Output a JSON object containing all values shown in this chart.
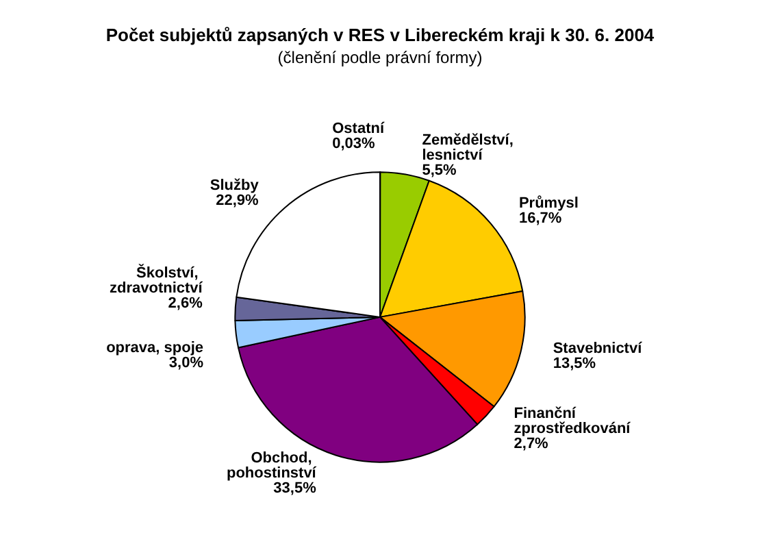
{
  "chart_data": {
    "type": "pie",
    "title": "Počet subjektů zapsaných v RES v Libereckém kraji k 30. 6. 2004",
    "subtitle": "(členění podle právní formy)",
    "categories": [
      "Ostatní",
      "Zemědělství, lesnictví",
      "Průmysl",
      "Stavebnictví",
      "Finanční zprostředkování",
      "Obchod, pohostinství",
      "oprava, spoje",
      "Školství, zdravotnictví",
      "Služby"
    ],
    "values": [
      0.03,
      5.5,
      16.7,
      13.5,
      2.7,
      33.5,
      3.0,
      2.6,
      22.9
    ],
    "value_labels": [
      "0,03%",
      "5,5%",
      "16,7%",
      "13,5%",
      "2,7%",
      "33,5%",
      "3,0%",
      "2,6%",
      "22,9%"
    ],
    "colors": [
      "#333399",
      "#99cc00",
      "#ffcc00",
      "#ff9900",
      "#ff0000",
      "#800080",
      "#99ccff",
      "#666699",
      "#ffffff"
    ],
    "legend": false
  }
}
